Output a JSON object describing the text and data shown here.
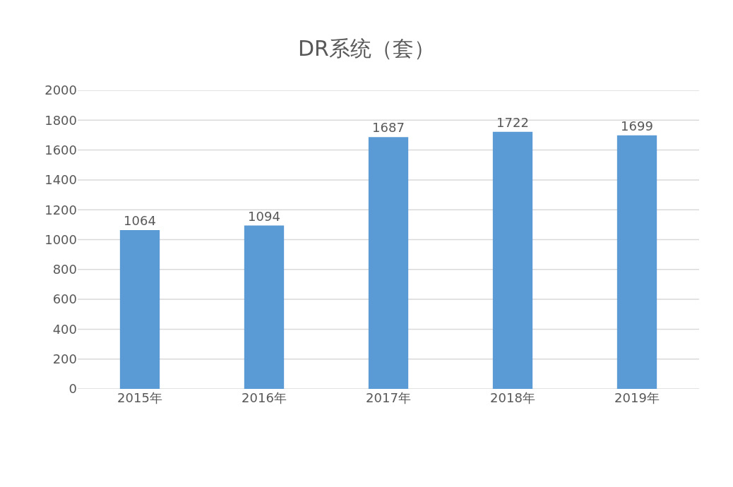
{
  "chart_data": {
    "type": "bar",
    "title": "DR系统（套）",
    "categories": [
      "2015年",
      "2016年",
      "2017年",
      "2018年",
      "2019年"
    ],
    "values": [
      1064,
      1094,
      1687,
      1722,
      1699
    ],
    "color": "#5b9bd5",
    "ylim": [
      0,
      2000
    ],
    "yticks": [
      0,
      200,
      400,
      600,
      800,
      1000,
      1200,
      1400,
      1600,
      1800,
      2000
    ],
    "grid": "y",
    "data_labels": true
  }
}
